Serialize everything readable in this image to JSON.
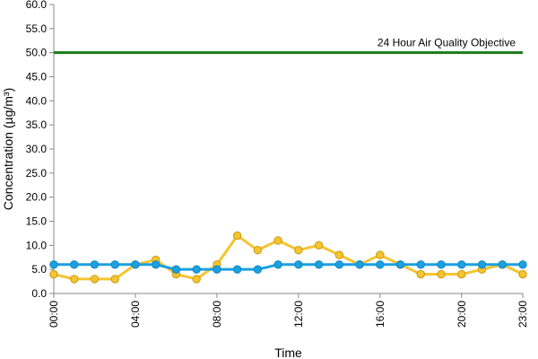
{
  "chart_data": {
    "type": "line",
    "xlabel": "Time",
    "ylabel": "Concentration (µg/m³)",
    "ylim": [
      0,
      60
    ],
    "yticks": [
      "0.0",
      "5.0",
      "10.0",
      "15.0",
      "20.0",
      "25.0",
      "30.0",
      "35.0",
      "40.0",
      "45.0",
      "50.0",
      "55.0",
      "60.0"
    ],
    "x": [
      0,
      1,
      2,
      3,
      4,
      5,
      6,
      7,
      8,
      9,
      10,
      11,
      12,
      13,
      14,
      15,
      16,
      17,
      18,
      19,
      20,
      21,
      22,
      23
    ],
    "xticks": [
      {
        "x": 0,
        "label": "00:00"
      },
      {
        "x": 4,
        "label": "04:00"
      },
      {
        "x": 8,
        "label": "08:00"
      },
      {
        "x": 12,
        "label": "12:00"
      },
      {
        "x": 16,
        "label": "16:00"
      },
      {
        "x": 20,
        "label": "20:00"
      },
      {
        "x": 23,
        "label": "23:00"
      }
    ],
    "series": [
      {
        "color": "#f5c431",
        "values": [
          4,
          3,
          3,
          3,
          6,
          7,
          4,
          3,
          6,
          12,
          9,
          11,
          9,
          10,
          8,
          6,
          8,
          6,
          4,
          4,
          4,
          5,
          6,
          4
        ]
      },
      {
        "color": "#1ba1e2",
        "values": [
          6,
          6,
          6,
          6,
          6,
          6,
          5,
          5,
          5,
          5,
          5,
          6,
          6,
          6,
          6,
          6,
          6,
          6,
          6,
          6,
          6,
          6,
          6,
          6
        ]
      }
    ],
    "reference_line": {
      "y": 50,
      "label": "24 Hour Air Quality Objective",
      "color": "#1a7a1a"
    },
    "grid": false,
    "legend": "none"
  }
}
